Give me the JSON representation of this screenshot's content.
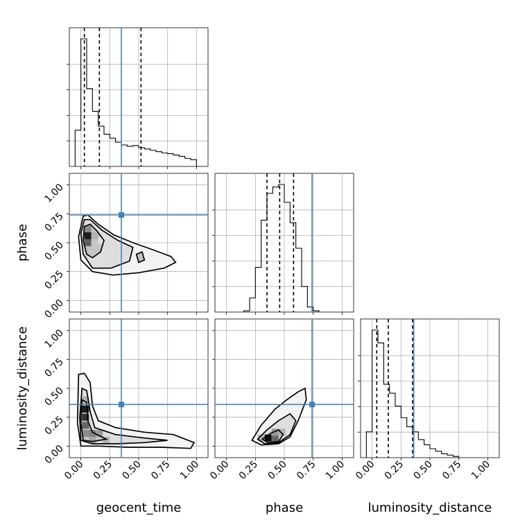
{
  "chart_data": {
    "type": "corner",
    "parameters": [
      "geocent_time",
      "phase",
      "luminosity_distance"
    ],
    "xlabels": [
      "geocent_time",
      "phase",
      "luminosity_distance"
    ],
    "ylabels": [
      "",
      "phase",
      "luminosity_distance"
    ],
    "axis_range": [
      -0.1,
      1.1
    ],
    "tick_values": [
      0.0,
      0.25,
      0.5,
      0.75,
      1.0
    ],
    "tick_labels": [
      "0.00",
      "0.25",
      "0.50",
      "0.75",
      "1.00"
    ],
    "grid": true,
    "truth_color": "#4682b4",
    "truths": {
      "geocent_time": 0.35,
      "phase": 0.74,
      "luminosity_distance": 0.36
    },
    "histograms": {
      "geocent_time": {
        "bin_edges": [
          -0.05,
          0.0,
          0.05,
          0.1,
          0.15,
          0.2,
          0.25,
          0.3,
          0.35,
          0.4,
          0.45,
          0.5,
          0.55,
          0.6,
          0.65,
          0.7,
          0.75,
          0.8,
          0.85,
          0.9,
          0.95,
          1.0
        ],
        "counts": [
          0.27,
          0.95,
          0.58,
          0.41,
          0.3,
          0.24,
          0.21,
          0.18,
          0.16,
          0.15,
          0.155,
          0.14,
          0.13,
          0.12,
          0.11,
          0.1,
          0.095,
          0.085,
          0.075,
          0.06,
          0.05
        ],
        "quantiles": [
          0.03,
          0.16,
          0.52
        ]
      },
      "phase": {
        "bin_edges": [
          0.15,
          0.2,
          0.25,
          0.3,
          0.35,
          0.4,
          0.45,
          0.5,
          0.55,
          0.6,
          0.65,
          0.7,
          0.75,
          0.8
        ],
        "counts": [
          0.01,
          0.11,
          0.35,
          0.72,
          0.93,
          0.98,
          1.0,
          0.86,
          0.7,
          0.5,
          0.2,
          0.04,
          0.01
        ],
        "quantiles": [
          0.35,
          0.46,
          0.58
        ]
      },
      "luminosity_distance": {
        "bin_edges": [
          -0.05,
          0.0,
          0.05,
          0.1,
          0.15,
          0.2,
          0.25,
          0.3,
          0.35,
          0.4,
          0.45,
          0.5,
          0.55,
          0.6,
          0.65,
          0.7,
          0.75
        ],
        "counts": [
          0.2,
          0.99,
          0.89,
          0.57,
          0.5,
          0.4,
          0.31,
          0.24,
          0.2,
          0.14,
          0.1,
          0.07,
          0.05,
          0.03,
          0.02,
          0.01
        ],
        "quantiles": [
          0.04,
          0.14,
          0.35
        ]
      }
    },
    "pairs": [
      {
        "x": "geocent_time",
        "y": "phase",
        "contours": [
          [
            [
              0.02,
              0.73
            ],
            [
              0.06,
              0.74
            ],
            [
              0.15,
              0.66
            ],
            [
              0.28,
              0.57
            ],
            [
              0.45,
              0.5
            ],
            [
              0.62,
              0.44
            ],
            [
              0.78,
              0.38
            ],
            [
              0.82,
              0.33
            ],
            [
              0.72,
              0.28
            ],
            [
              0.5,
              0.24
            ],
            [
              0.28,
              0.22
            ],
            [
              0.1,
              0.25
            ],
            [
              0.0,
              0.35
            ],
            [
              -0.02,
              0.55
            ]
          ],
          [
            [
              0.03,
              0.7
            ],
            [
              0.08,
              0.7
            ],
            [
              0.18,
              0.61
            ],
            [
              0.32,
              0.52
            ],
            [
              0.45,
              0.46
            ],
            [
              0.42,
              0.34
            ],
            [
              0.26,
              0.28
            ],
            [
              0.1,
              0.28
            ],
            [
              0.02,
              0.4
            ],
            [
              0.0,
              0.58
            ]
          ],
          [
            [
              0.03,
              0.64
            ],
            [
              0.08,
              0.66
            ],
            [
              0.14,
              0.6
            ],
            [
              0.2,
              0.52
            ],
            [
              0.17,
              0.42
            ],
            [
              0.1,
              0.37
            ],
            [
              0.05,
              0.4
            ],
            [
              0.02,
              0.52
            ]
          ],
          [
            [
              0.48,
              0.4
            ],
            [
              0.53,
              0.42
            ],
            [
              0.55,
              0.35
            ],
            [
              0.5,
              0.33
            ]
          ]
        ],
        "density": [
          {
            "x": 0.06,
            "y": 0.56,
            "w": 0.88
          },
          {
            "x": 0.06,
            "y": 0.5,
            "w": 0.62
          },
          {
            "x": 0.06,
            "y": 0.62,
            "w": 0.45
          },
          {
            "x": 0.12,
            "y": 0.56,
            "w": 0.3
          },
          {
            "x": 0.12,
            "y": 0.48,
            "w": 0.22
          },
          {
            "x": 0.18,
            "y": 0.52,
            "w": 0.12
          }
        ]
      },
      {
        "x": "geocent_time",
        "y": "luminosity_distance",
        "contours": [
          [
            [
              -0.02,
              0.62
            ],
            [
              0.03,
              0.63
            ],
            [
              0.08,
              0.55
            ],
            [
              0.1,
              0.35
            ],
            [
              0.15,
              0.22
            ],
            [
              0.3,
              0.16
            ],
            [
              0.55,
              0.12
            ],
            [
              0.8,
              0.1
            ],
            [
              0.98,
              0.03
            ],
            [
              0.95,
              -0.02
            ],
            [
              0.7,
              -0.01
            ],
            [
              0.4,
              -0.01
            ],
            [
              0.15,
              0.0
            ],
            [
              0.0,
              0.0
            ],
            [
              -0.03,
              0.2
            ]
          ],
          [
            [
              0.01,
              0.5
            ],
            [
              0.05,
              0.48
            ],
            [
              0.08,
              0.3
            ],
            [
              0.12,
              0.16
            ],
            [
              0.3,
              0.1
            ],
            [
              0.55,
              0.07
            ],
            [
              0.75,
              0.05
            ],
            [
              0.55,
              0.03
            ],
            [
              0.3,
              0.02
            ],
            [
              0.1,
              0.02
            ],
            [
              0.0,
              0.05
            ],
            [
              -0.01,
              0.25
            ]
          ],
          [
            [
              0.01,
              0.4
            ],
            [
              0.05,
              0.38
            ],
            [
              0.06,
              0.22
            ],
            [
              0.1,
              0.12
            ],
            [
              0.22,
              0.06
            ],
            [
              0.1,
              0.04
            ],
            [
              0.02,
              0.05
            ],
            [
              0.0,
              0.2
            ]
          ]
        ],
        "density": [
          {
            "x": 0.04,
            "y": 0.32,
            "w": 0.88
          },
          {
            "x": 0.04,
            "y": 0.25,
            "w": 0.8
          },
          {
            "x": 0.04,
            "y": 0.18,
            "w": 0.6
          },
          {
            "x": 0.04,
            "y": 0.11,
            "w": 0.45
          },
          {
            "x": 0.1,
            "y": 0.11,
            "w": 0.5
          },
          {
            "x": 0.16,
            "y": 0.11,
            "w": 0.4
          },
          {
            "x": 0.22,
            "y": 0.05,
            "w": 0.3
          },
          {
            "x": 0.1,
            "y": 0.05,
            "w": 0.35
          },
          {
            "x": 0.04,
            "y": 0.4,
            "w": 0.3
          }
        ]
      },
      {
        "x": "phase",
        "y": "luminosity_distance",
        "contours": [
          [
            [
              0.22,
              0.05
            ],
            [
              0.3,
              0.18
            ],
            [
              0.42,
              0.32
            ],
            [
              0.52,
              0.4
            ],
            [
              0.62,
              0.47
            ],
            [
              0.68,
              0.5
            ],
            [
              0.69,
              0.4
            ],
            [
              0.62,
              0.22
            ],
            [
              0.55,
              0.08
            ],
            [
              0.45,
              0.02
            ],
            [
              0.3,
              0.01
            ]
          ],
          [
            [
              0.27,
              0.06
            ],
            [
              0.35,
              0.14
            ],
            [
              0.45,
              0.22
            ],
            [
              0.55,
              0.28
            ],
            [
              0.6,
              0.22
            ],
            [
              0.55,
              0.1
            ],
            [
              0.45,
              0.03
            ],
            [
              0.33,
              0.02
            ]
          ],
          [
            [
              0.31,
              0.06
            ],
            [
              0.38,
              0.11
            ],
            [
              0.45,
              0.14
            ],
            [
              0.49,
              0.1
            ],
            [
              0.45,
              0.04
            ],
            [
              0.36,
              0.03
            ]
          ]
        ],
        "density": [
          {
            "x": 0.36,
            "y": 0.07,
            "w": 0.95
          },
          {
            "x": 0.42,
            "y": 0.07,
            "w": 0.6
          },
          {
            "x": 0.42,
            "y": 0.12,
            "w": 0.4
          },
          {
            "x": 0.48,
            "y": 0.12,
            "w": 0.3
          },
          {
            "x": 0.3,
            "y": 0.07,
            "w": 0.3
          }
        ]
      }
    ]
  }
}
